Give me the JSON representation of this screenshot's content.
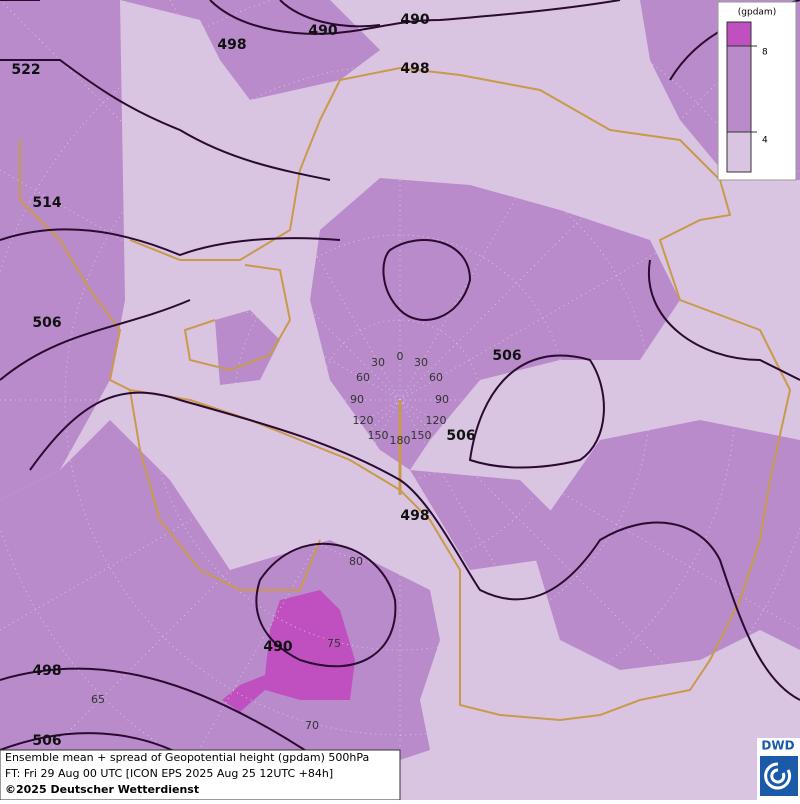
{
  "contour_labels": [
    "490",
    "490",
    "498",
    "498",
    "522",
    "514",
    "506",
    "506",
    "506",
    "498",
    "490",
    "498",
    "506"
  ],
  "graticule": {
    "longitude_labels": [
      "0",
      "30",
      "30",
      "60",
      "60",
      "90",
      "90",
      "120",
      "120",
      "150",
      "150",
      "180"
    ],
    "latitude_labels": [
      "80",
      "75",
      "70",
      "65"
    ]
  },
  "legend": {
    "title": "(gpdam)",
    "labels": [
      "8",
      "4"
    ]
  },
  "caption": {
    "lines": [
      "Ensemble mean + spread of Geopotential height (gpdam) 500hPa",
      "FT: Fri 29 Aug 00 UTC [ICON EPS 2025 Aug 25 12UTC +84h]",
      "©2025 Deutscher Wetterdienst"
    ]
  },
  "logo": "DWD"
}
